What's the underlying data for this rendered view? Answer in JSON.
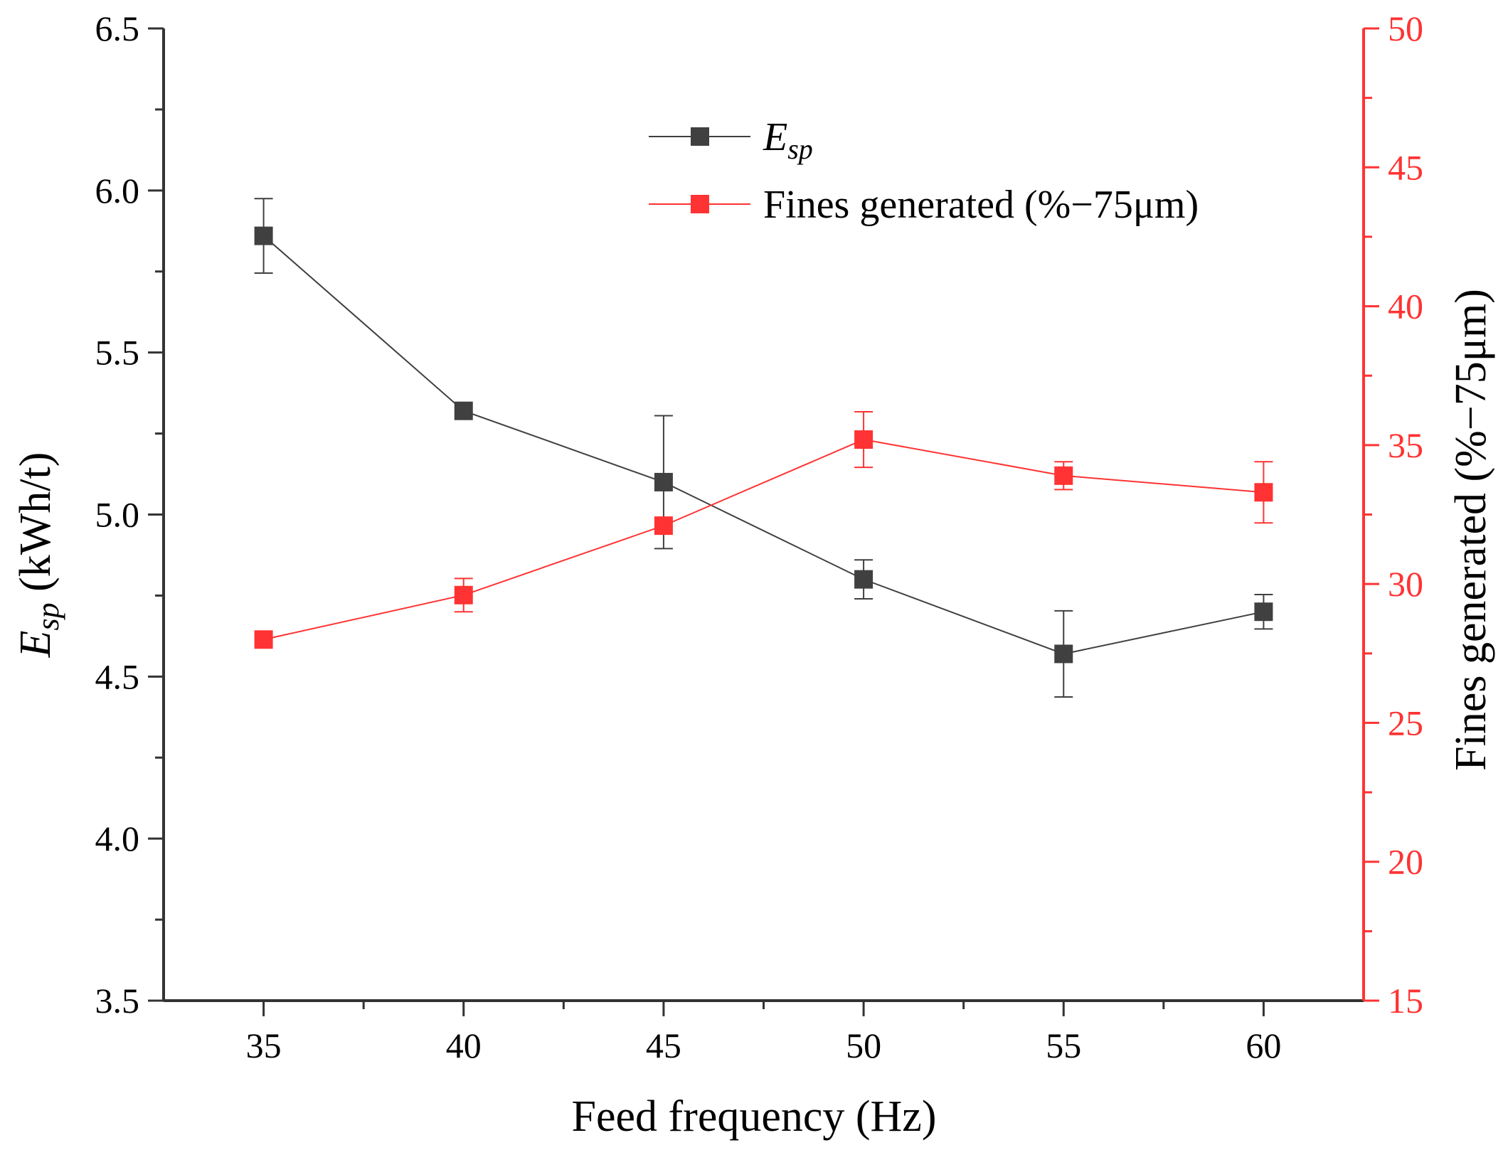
{
  "chart_data": {
    "type": "line",
    "xlabel": "Feed frequency (Hz)",
    "ylabel_left": {
      "main": "E",
      "sub": "sp",
      "rest": " (kWh/t)"
    },
    "ylabel_right": "Fines generated (%−75μm)",
    "x": [
      35,
      40,
      45,
      50,
      55,
      60
    ],
    "xlim": [
      32.5,
      62.5
    ],
    "ylim_left": [
      3.5,
      6.5
    ],
    "ylim_right": [
      15,
      50
    ],
    "x_ticks": [
      "35",
      "40",
      "45",
      "50",
      "55",
      "60"
    ],
    "y_left_ticks": [
      "3.5",
      "4.0",
      "4.5",
      "5.0",
      "5.5",
      "6.0",
      "6.5"
    ],
    "y_right_ticks": [
      "15",
      "20",
      "25",
      "30",
      "35",
      "40",
      "45",
      "50"
    ],
    "legend_position": "top-center",
    "series": [
      {
        "name": "Esp",
        "legend_main": "E",
        "legend_sub": "sp",
        "axis": "left",
        "color": "#404040",
        "values": [
          5.86,
          5.32,
          5.1,
          4.8,
          4.57,
          4.7
        ],
        "errors": [
          0.115,
          0.0,
          0.205,
          0.06,
          0.133,
          0.053
        ]
      },
      {
        "name": "Fines generated (%−75μm)",
        "axis": "right",
        "color": "#ff3333",
        "values": [
          28.0,
          29.6,
          32.1,
          35.2,
          33.9,
          33.3
        ],
        "errors": [
          0.0,
          0.6,
          0.0,
          1.0,
          0.5,
          1.1
        ]
      }
    ]
  }
}
